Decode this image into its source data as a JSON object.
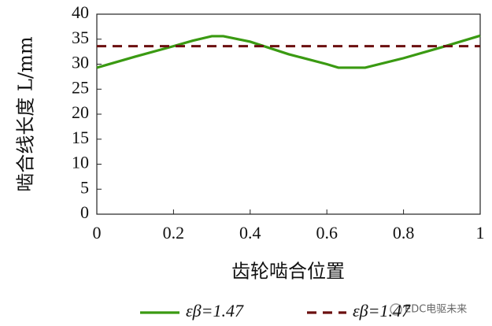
{
  "chart_data": {
    "type": "line",
    "xlabel": "齿轮啮合位置",
    "ylabel": "啮合线长度 L/mm",
    "x": [
      0,
      0.1,
      0.2,
      0.25,
      0.3,
      0.33,
      0.4,
      0.5,
      0.6,
      0.63,
      0.7,
      0.8,
      0.9,
      1
    ],
    "series": [
      {
        "name": "εβ=1.47",
        "color": "#3a9a12",
        "dash": false,
        "values": [
          29.3,
          31.5,
          33.6,
          34.7,
          35.6,
          35.6,
          34.5,
          32.0,
          30.0,
          29.3,
          29.3,
          31.2,
          33.4,
          35.7
        ]
      },
      {
        "name": "εβ=1.47",
        "color": "#6b0f0f",
        "dash": true,
        "values": [
          33.6,
          33.6,
          33.6,
          33.6,
          33.6,
          33.6,
          33.6,
          33.6,
          33.6,
          33.6,
          33.6,
          33.6,
          33.6,
          33.6
        ]
      }
    ],
    "xlim": [
      0,
      1
    ],
    "xticks": [
      0,
      0.2,
      0.4,
      0.6,
      0.8,
      1
    ],
    "ylim": [
      0,
      40
    ],
    "yticks": [
      0,
      5,
      10,
      15,
      20,
      25,
      30,
      35,
      40
    ],
    "grid": false,
    "watermark": "EDC电驱未来"
  }
}
